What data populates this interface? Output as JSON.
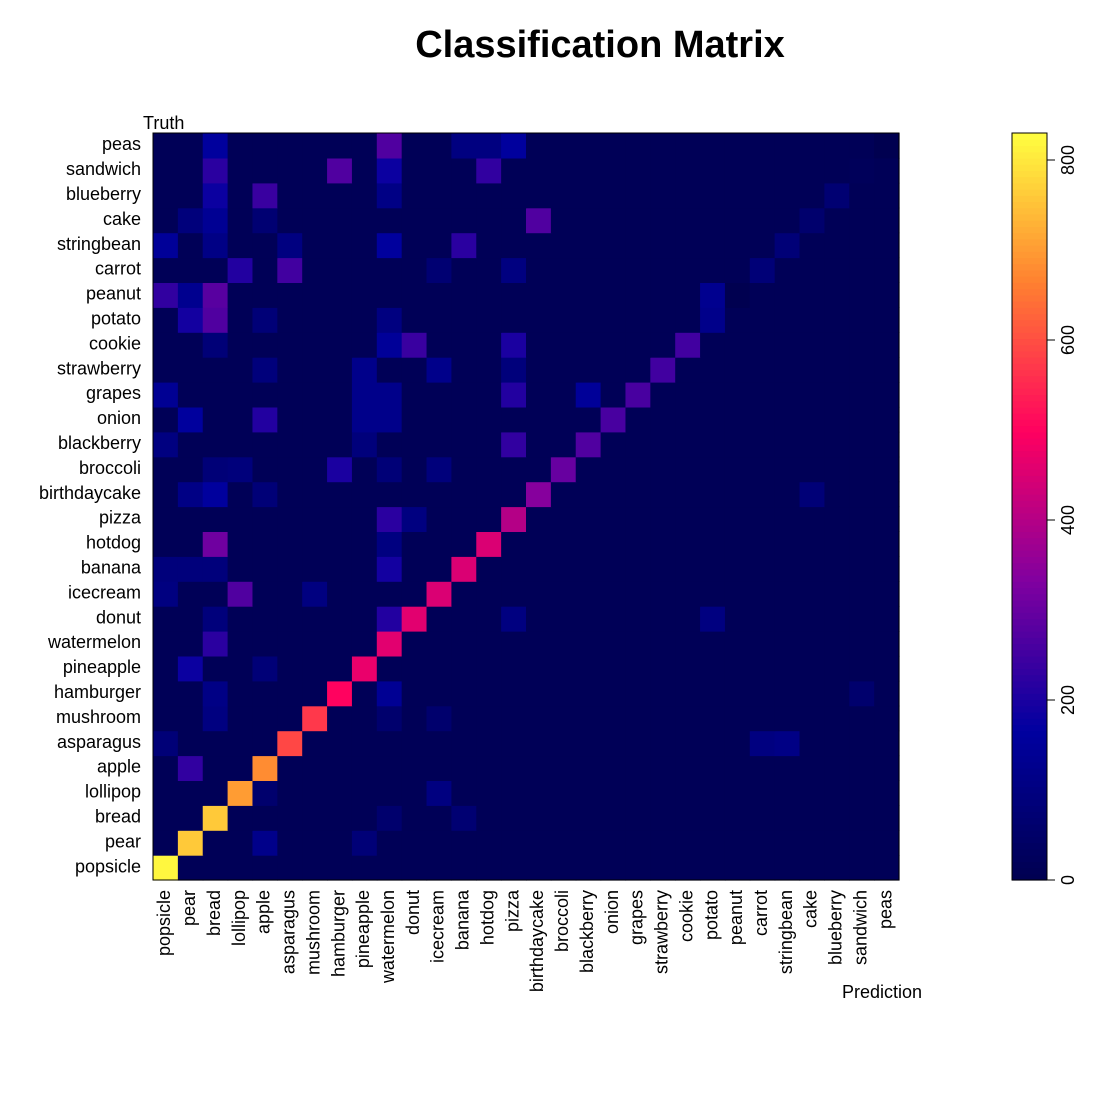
{
  "chart_data": {
    "type": "heatmap",
    "title": "Classification Matrix",
    "xlabel": "Prediction",
    "ylabel": "Truth",
    "x_categories": [
      "popsicle",
      "pear",
      "bread",
      "lollipop",
      "apple",
      "asparagus",
      "mushroom",
      "hamburger",
      "pineapple",
      "watermelon",
      "donut",
      "icecream",
      "banana",
      "hotdog",
      "pizza",
      "birthdaycake",
      "broccoli",
      "blackberry",
      "onion",
      "grapes",
      "strawberry",
      "cookie",
      "potato",
      "peanut",
      "carrot",
      "stringbean",
      "cake",
      "blueberry",
      "sandwich",
      "peas"
    ],
    "y_categories": [
      "popsicle",
      "pear",
      "bread",
      "lollipop",
      "apple",
      "asparagus",
      "mushroom",
      "hamburger",
      "pineapple",
      "watermelon",
      "donut",
      "icecream",
      "banana",
      "hotdog",
      "pizza",
      "birthdaycake",
      "broccoli",
      "blackberry",
      "onion",
      "grapes",
      "strawberry",
      "cookie",
      "potato",
      "peanut",
      "carrot",
      "stringbean",
      "cake",
      "blueberry",
      "sandwich",
      "peas"
    ],
    "diagonal": [
      820,
      760,
      760,
      700,
      680,
      590,
      570,
      500,
      470,
      460,
      460,
      450,
      450,
      450,
      400,
      340,
      300,
      270,
      260,
      260,
      250,
      250,
      120,
      0,
      80,
      80,
      60,
      70,
      20,
      0
    ],
    "off_diagonal": [
      {
        "truth": "pear",
        "prediction": "apple",
        "value": 120
      },
      {
        "truth": "pear",
        "prediction": "pineapple",
        "value": 80
      },
      {
        "truth": "bread",
        "prediction": "watermelon",
        "value": 60
      },
      {
        "truth": "bread",
        "prediction": "banana",
        "value": 70
      },
      {
        "truth": "lollipop",
        "prediction": "apple",
        "value": 60
      },
      {
        "truth": "lollipop",
        "prediction": "icecream",
        "value": 100
      },
      {
        "truth": "apple",
        "prediction": "pear",
        "value": 230
      },
      {
        "truth": "asparagus",
        "prediction": "popsicle",
        "value": 80
      },
      {
        "truth": "asparagus",
        "prediction": "carrot",
        "value": 100
      },
      {
        "truth": "asparagus",
        "prediction": "stringbean",
        "value": 110
      },
      {
        "truth": "mushroom",
        "prediction": "bread",
        "value": 100
      },
      {
        "truth": "mushroom",
        "prediction": "watermelon",
        "value": 60
      },
      {
        "truth": "mushroom",
        "prediction": "icecream",
        "value": 60
      },
      {
        "truth": "hamburger",
        "prediction": "bread",
        "value": 110
      },
      {
        "truth": "hamburger",
        "prediction": "watermelon",
        "value": 140
      },
      {
        "truth": "hamburger",
        "prediction": "sandwich",
        "value": 60
      },
      {
        "truth": "pineapple",
        "prediction": "pear",
        "value": 180
      },
      {
        "truth": "pineapple",
        "prediction": "apple",
        "value": 80
      },
      {
        "truth": "watermelon",
        "prediction": "bread",
        "value": 220
      },
      {
        "truth": "donut",
        "prediction": "bread",
        "value": 90
      },
      {
        "truth": "donut",
        "prediction": "watermelon",
        "value": 210
      },
      {
        "truth": "donut",
        "prediction": "pizza",
        "value": 100
      },
      {
        "truth": "donut",
        "prediction": "potato",
        "value": 100
      },
      {
        "truth": "icecream",
        "prediction": "popsicle",
        "value": 100
      },
      {
        "truth": "icecream",
        "prediction": "lollipop",
        "value": 270
      },
      {
        "truth": "icecream",
        "prediction": "mushroom",
        "value": 100
      },
      {
        "truth": "banana",
        "prediction": "popsicle",
        "value": 90
      },
      {
        "truth": "banana",
        "prediction": "pear",
        "value": 90
      },
      {
        "truth": "banana",
        "prediction": "bread",
        "value": 90
      },
      {
        "truth": "banana",
        "prediction": "watermelon",
        "value": 190
      },
      {
        "truth": "hotdog",
        "prediction": "bread",
        "value": 310
      },
      {
        "truth": "hotdog",
        "prediction": "watermelon",
        "value": 100
      },
      {
        "truth": "pizza",
        "prediction": "watermelon",
        "value": 220
      },
      {
        "truth": "pizza",
        "prediction": "donut",
        "value": 100
      },
      {
        "truth": "birthdaycake",
        "prediction": "pear",
        "value": 110
      },
      {
        "truth": "birthdaycake",
        "prediction": "bread",
        "value": 160
      },
      {
        "truth": "birthdaycake",
        "prediction": "apple",
        "value": 80
      },
      {
        "truth": "birthdaycake",
        "prediction": "cake",
        "value": 80
      },
      {
        "truth": "broccoli",
        "prediction": "bread",
        "value": 80
      },
      {
        "truth": "broccoli",
        "prediction": "lollipop",
        "value": 90
      },
      {
        "truth": "broccoli",
        "prediction": "hamburger",
        "value": 200
      },
      {
        "truth": "broccoli",
        "prediction": "watermelon",
        "value": 80
      },
      {
        "truth": "broccoli",
        "prediction": "icecream",
        "value": 90
      },
      {
        "truth": "blackberry",
        "prediction": "popsicle",
        "value": 100
      },
      {
        "truth": "blackberry",
        "prediction": "pineapple",
        "value": 90
      },
      {
        "truth": "blackberry",
        "prediction": "pizza",
        "value": 230
      },
      {
        "truth": "onion",
        "prediction": "pear",
        "value": 160
      },
      {
        "truth": "onion",
        "prediction": "apple",
        "value": 210
      },
      {
        "truth": "onion",
        "prediction": "pineapple",
        "value": 120
      },
      {
        "truth": "onion",
        "prediction": "watermelon",
        "value": 120
      },
      {
        "truth": "grapes",
        "prediction": "popsicle",
        "value": 140
      },
      {
        "truth": "grapes",
        "prediction": "pineapple",
        "value": 120
      },
      {
        "truth": "grapes",
        "prediction": "watermelon",
        "value": 120
      },
      {
        "truth": "grapes",
        "prediction": "pizza",
        "value": 210
      },
      {
        "truth": "grapes",
        "prediction": "blackberry",
        "value": 150
      },
      {
        "truth": "strawberry",
        "prediction": "pineapple",
        "value": 120
      },
      {
        "truth": "strawberry",
        "prediction": "icecream",
        "value": 120
      },
      {
        "truth": "strawberry",
        "prediction": "apple",
        "value": 90
      },
      {
        "truth": "strawberry",
        "prediction": "pizza",
        "value": 90
      },
      {
        "truth": "cookie",
        "prediction": "watermelon",
        "value": 150
      },
      {
        "truth": "cookie",
        "prediction": "donut",
        "value": 240
      },
      {
        "truth": "cookie",
        "prediction": "pizza",
        "value": 200
      },
      {
        "truth": "cookie",
        "prediction": "bread",
        "value": 80
      },
      {
        "truth": "potato",
        "prediction": "pear",
        "value": 190
      },
      {
        "truth": "potato",
        "prediction": "bread",
        "value": 270
      },
      {
        "truth": "potato",
        "prediction": "apple",
        "value": 80
      },
      {
        "truth": "potato",
        "prediction": "watermelon",
        "value": 100
      },
      {
        "truth": "peanut",
        "prediction": "popsicle",
        "value": 230
      },
      {
        "truth": "peanut",
        "prediction": "pear",
        "value": 130
      },
      {
        "truth": "peanut",
        "prediction": "bread",
        "value": 280
      },
      {
        "truth": "peanut",
        "prediction": "potato",
        "value": 130
      },
      {
        "truth": "carrot",
        "prediction": "lollipop",
        "value": 210
      },
      {
        "truth": "carrot",
        "prediction": "asparagus",
        "value": 250
      },
      {
        "truth": "carrot",
        "prediction": "pizza",
        "value": 100
      },
      {
        "truth": "carrot",
        "prediction": "icecream",
        "value": 70
      },
      {
        "truth": "stringbean",
        "prediction": "popsicle",
        "value": 150
      },
      {
        "truth": "stringbean",
        "prediction": "bread",
        "value": 110
      },
      {
        "truth": "stringbean",
        "prediction": "asparagus",
        "value": 100
      },
      {
        "truth": "stringbean",
        "prediction": "watermelon",
        "value": 160
      },
      {
        "truth": "stringbean",
        "prediction": "banana",
        "value": 220
      },
      {
        "truth": "cake",
        "prediction": "pear",
        "value": 90
      },
      {
        "truth": "cake",
        "prediction": "bread",
        "value": 140
      },
      {
        "truth": "cake",
        "prediction": "birthdaycake",
        "value": 270
      },
      {
        "truth": "cake",
        "prediction": "apple",
        "value": 70
      },
      {
        "truth": "blueberry",
        "prediction": "bread",
        "value": 180
      },
      {
        "truth": "blueberry",
        "prediction": "apple",
        "value": 240
      },
      {
        "truth": "blueberry",
        "prediction": "watermelon",
        "value": 110
      },
      {
        "truth": "sandwich",
        "prediction": "bread",
        "value": 220
      },
      {
        "truth": "sandwich",
        "prediction": "hamburger",
        "value": 270
      },
      {
        "truth": "sandwich",
        "prediction": "watermelon",
        "value": 180
      },
      {
        "truth": "sandwich",
        "prediction": "hotdog",
        "value": 230
      },
      {
        "truth": "peas",
        "prediction": "bread",
        "value": 160
      },
      {
        "truth": "peas",
        "prediction": "watermelon",
        "value": 270
      },
      {
        "truth": "peas",
        "prediction": "pizza",
        "value": 160
      },
      {
        "truth": "peas",
        "prediction": "banana",
        "value": 100
      },
      {
        "truth": "peas",
        "prediction": "hotdog",
        "value": 100
      }
    ],
    "background_value": 15,
    "colorbar": {
      "min": 0,
      "max": 830,
      "ticks": [
        0,
        200,
        400,
        600,
        800
      ]
    },
    "colormap_stops": [
      "#000050",
      "#0000a0",
      "#8000a0",
      "#ff0060",
      "#ff8030",
      "#ffff40"
    ],
    "grid": false
  }
}
